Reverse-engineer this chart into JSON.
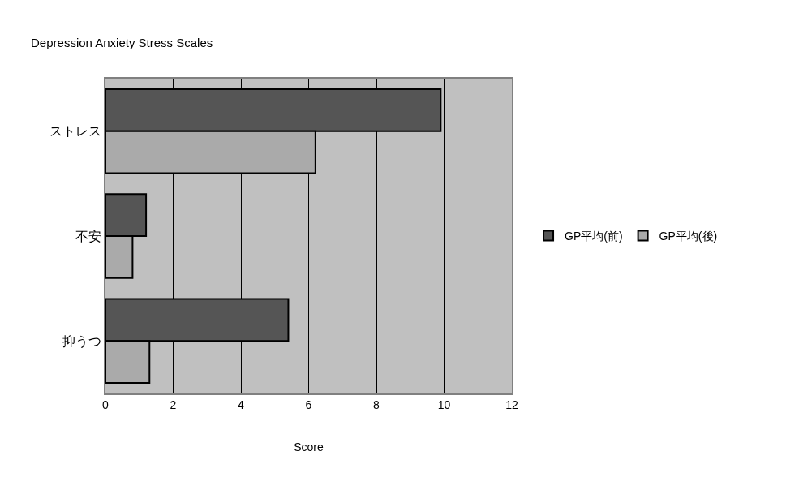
{
  "chart_data": {
    "type": "bar",
    "orientation": "horizontal",
    "title": "Depression Anxiety Stress Scales",
    "xlabel": "Score",
    "categories": [
      "ストレス",
      "不安",
      "抑うつ"
    ],
    "series": [
      {
        "name": "GP平均(前)",
        "color": "#555555",
        "values": [
          9.9,
          1.2,
          5.4
        ]
      },
      {
        "name": "GP平均(後)",
        "color": "#aaaaaa",
        "values": [
          6.2,
          0.8,
          1.3
        ]
      }
    ],
    "xlim": [
      0,
      12
    ],
    "xticks": [
      0,
      2,
      4,
      6,
      8,
      10,
      12
    ],
    "grid": "x",
    "legend": "right"
  }
}
